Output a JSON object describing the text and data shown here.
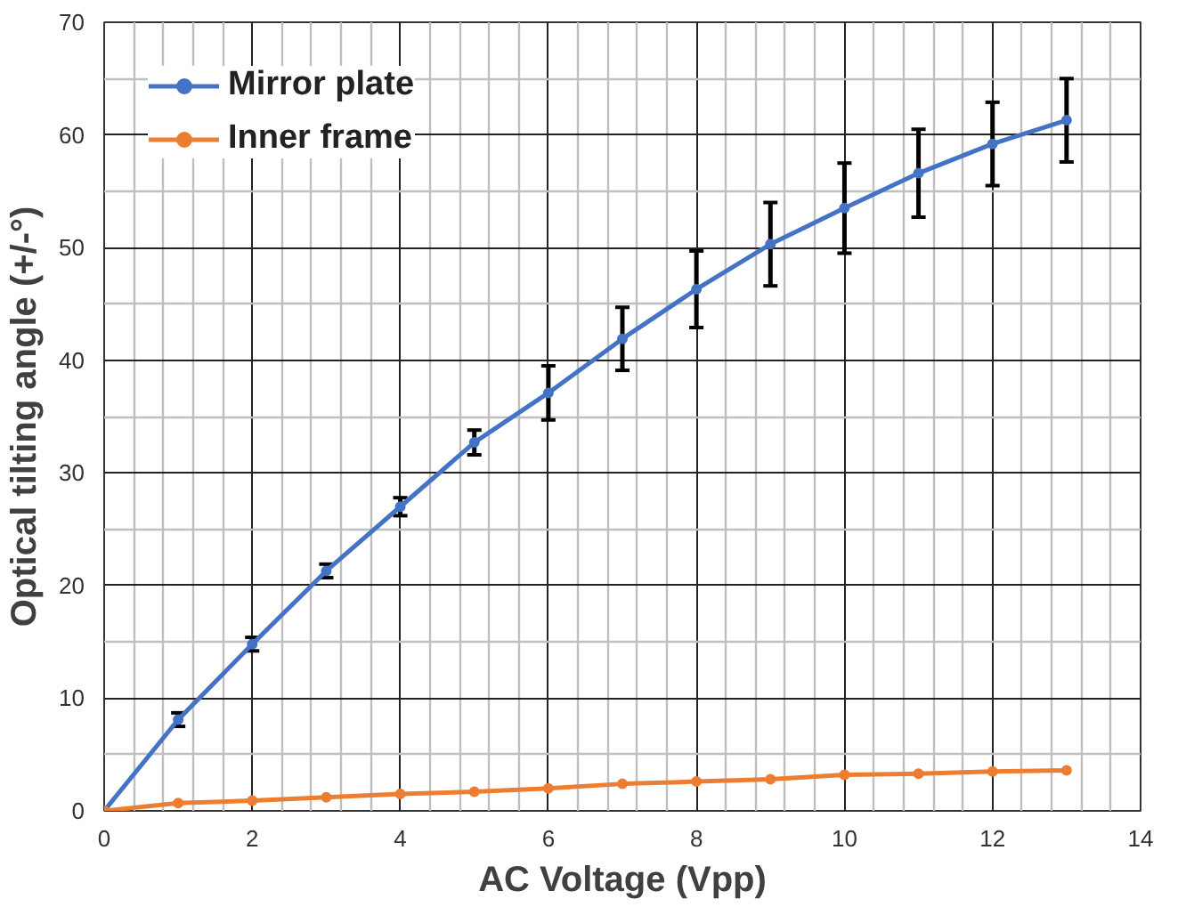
{
  "chart_data": {
    "type": "line",
    "xlabel": "AC Voltage (Vpp)",
    "ylabel": "Optical tilting angle (+/-°)",
    "x": [
      0,
      1,
      2,
      3,
      4,
      5,
      6,
      7,
      8,
      9,
      10,
      11,
      12,
      13
    ],
    "series": [
      {
        "name": "Mirror plate",
        "color": "#4472c4",
        "values": [
          0,
          8.1,
          14.8,
          21.3,
          27.0,
          32.7,
          37.1,
          41.9,
          46.3,
          50.3,
          53.5,
          56.6,
          59.2,
          61.3
        ],
        "errors": [
          null,
          0.6,
          0.6,
          0.6,
          0.8,
          1.1,
          2.4,
          2.8,
          3.4,
          3.7,
          4.0,
          3.9,
          3.7,
          3.7
        ]
      },
      {
        "name": "Inner frame",
        "color": "#ed7d31",
        "values": [
          0,
          0.7,
          0.9,
          1.2,
          1.5,
          1.7,
          2.0,
          2.4,
          2.6,
          2.8,
          3.2,
          3.3,
          3.5,
          3.6
        ]
      }
    ],
    "xlim": [
      0,
      14
    ],
    "ylim": [
      0,
      70
    ],
    "xticks": [
      0,
      2,
      4,
      6,
      8,
      10,
      12,
      14
    ],
    "yticks": [
      0,
      10,
      20,
      30,
      40,
      50,
      60,
      70
    ],
    "grid": true,
    "legend": "top left",
    "marker": "circle",
    "line_style": "solid"
  }
}
